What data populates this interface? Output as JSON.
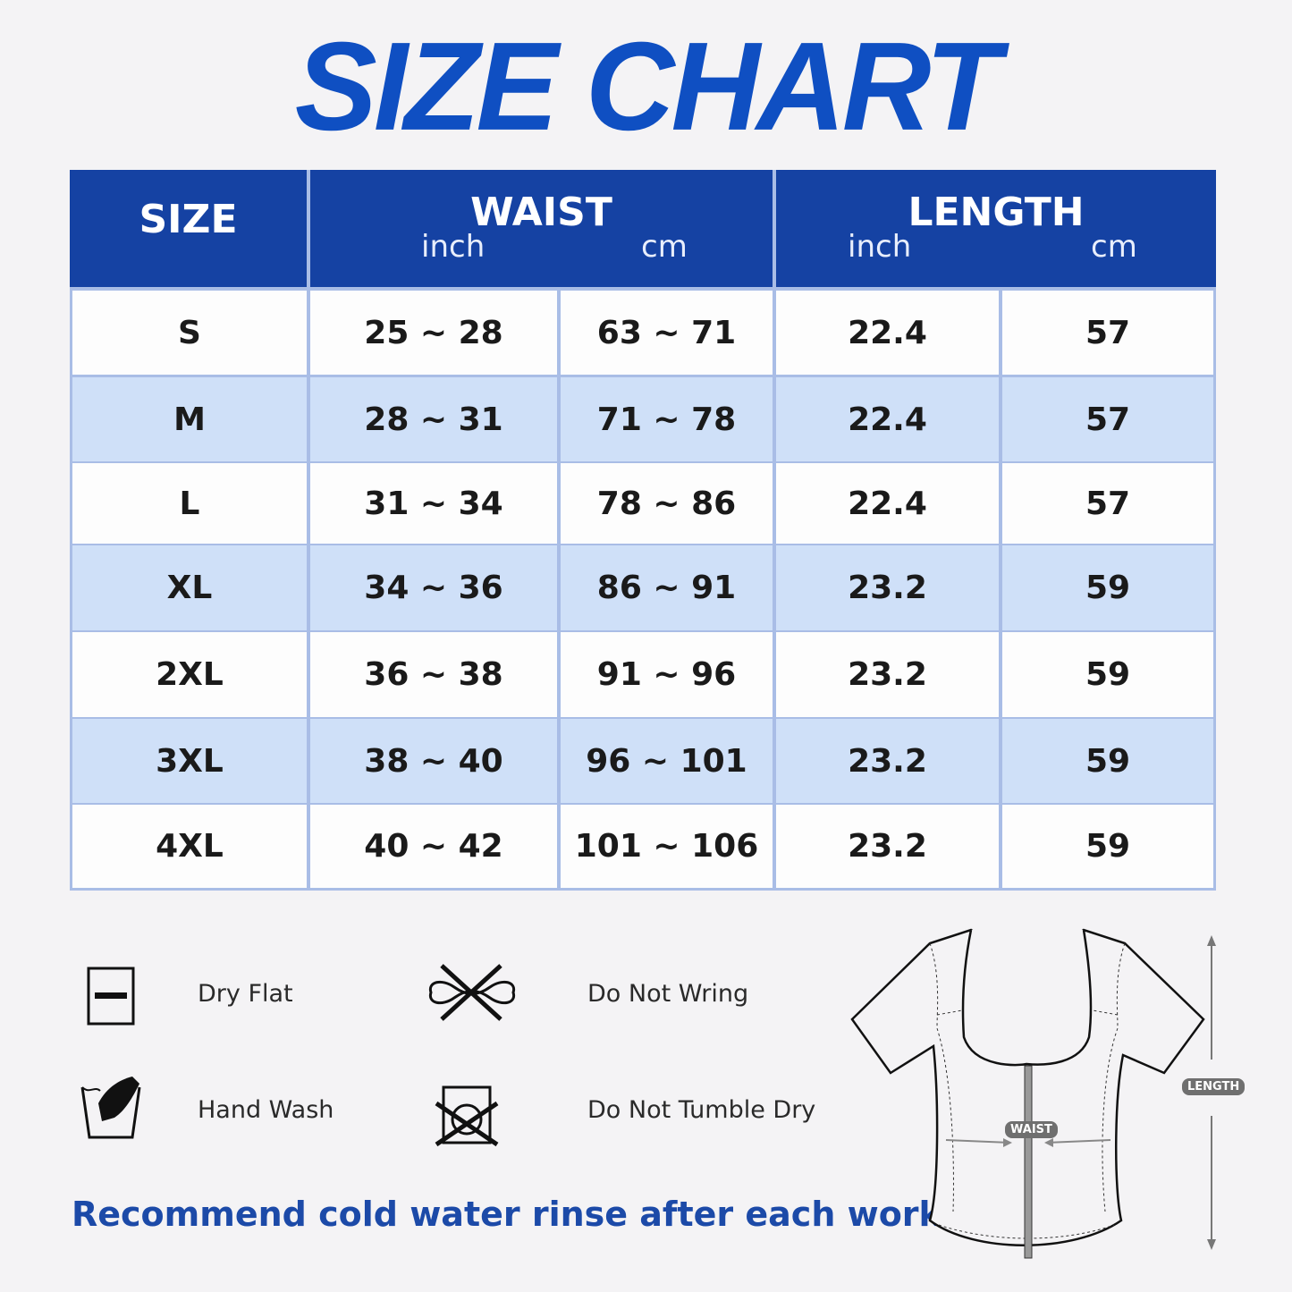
{
  "title": "SIZE CHART",
  "table": {
    "headers": {
      "size": "SIZE",
      "waist": "WAIST",
      "length": "LENGTH",
      "waist_inch": "inch",
      "waist_cm": "cm",
      "length_inch": "inch",
      "length_cm": "cm"
    },
    "rows": [
      {
        "size": "S",
        "waist_inch": "25 ~ 28",
        "waist_cm": "63 ~ 71",
        "length_inch": "22.4",
        "length_cm": "57"
      },
      {
        "size": "M",
        "waist_inch": "28 ~ 31",
        "waist_cm": "71 ~ 78",
        "length_inch": "22.4",
        "length_cm": "57"
      },
      {
        "size": "L",
        "waist_inch": "31 ~ 34",
        "waist_cm": "78 ~ 86",
        "length_inch": "22.4",
        "length_cm": "57"
      },
      {
        "size": "XL",
        "waist_inch": "34 ~ 36",
        "waist_cm": "86 ~ 91",
        "length_inch": "23.2",
        "length_cm": "59"
      },
      {
        "size": "2XL",
        "waist_inch": "36 ~ 38",
        "waist_cm": "91 ~ 96",
        "length_inch": "23.2",
        "length_cm": "59"
      },
      {
        "size": "3XL",
        "waist_inch": "38 ~ 40",
        "waist_cm": "96 ~ 101",
        "length_inch": "23.2",
        "length_cm": "59"
      },
      {
        "size": "4XL",
        "waist_inch": "40 ~ 42",
        "waist_cm": "101 ~ 106",
        "length_inch": "23.2",
        "length_cm": "59"
      }
    ]
  },
  "care": [
    {
      "icon": "dry-flat-icon",
      "label": "Dry Flat"
    },
    {
      "icon": "do-not-wring-icon",
      "label": "Do Not Wring"
    },
    {
      "icon": "hand-wash-icon",
      "label": "Hand Wash"
    },
    {
      "icon": "do-not-tumble-dry-icon",
      "label": "Do Not Tumble Dry"
    }
  ],
  "note": "Recommend cold water rinse after each workout.",
  "diagram": {
    "waist_label": "WAIST",
    "length_label": "LENGTH"
  },
  "colors": {
    "header": "#1542a3",
    "alt_row": "#cfe0f8",
    "row": "#fdfdfd",
    "title": "#0f4fc2",
    "note": "#1c4aa8"
  }
}
